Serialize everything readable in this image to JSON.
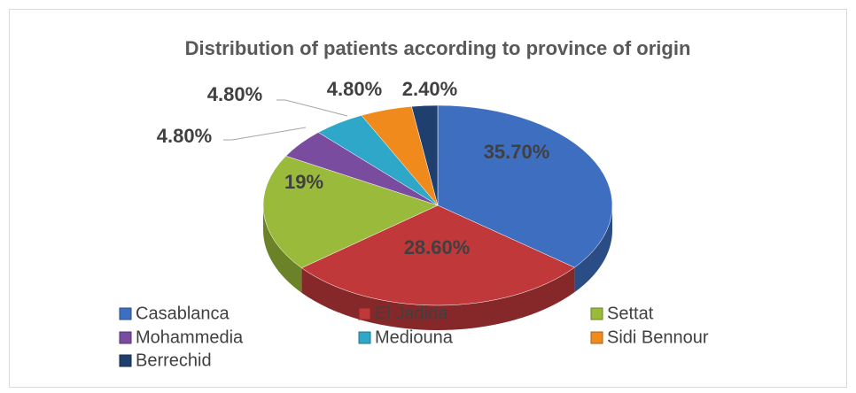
{
  "chart_data": {
    "type": "pie",
    "title": "Distribution of patients according to province of origin",
    "categories": [
      "Casablanca",
      "El Jadida",
      "Settat",
      "Mohammedia",
      "Mediouna",
      "Sidi Bennour",
      "Berrechid"
    ],
    "values": [
      35.7,
      28.6,
      19,
      4.8,
      4.8,
      4.8,
      2.4
    ],
    "value_labels": [
      "35.70%",
      "28.60%",
      "19%",
      "4.80%",
      "4.80%",
      "4.80%",
      "2.40%"
    ],
    "colors": [
      "#3e6ebf",
      "#c0383a",
      "#9aba3b",
      "#7a4c9f",
      "#2fa7c9",
      "#f08a1d",
      "#1f406f"
    ],
    "legend": "bottom"
  }
}
